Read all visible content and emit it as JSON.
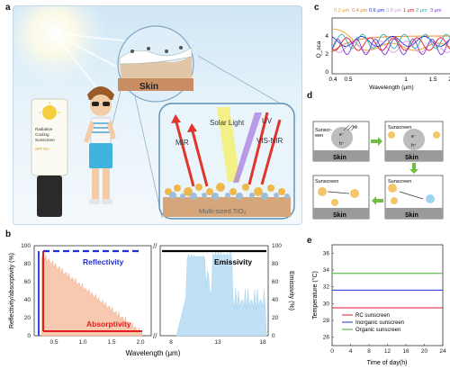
{
  "panels": {
    "a": {
      "label": "a",
      "skin_bubble_label": "Skin",
      "tube_lines": [
        "Radiative",
        "Cooling",
        "Sunscreen"
      ],
      "tube_spf": "SPF 50+",
      "solar_light_label": "Solar Light",
      "uv_label": "UV",
      "mir_label": "MIR",
      "visnir_label": "VIS-NIR",
      "tio2_label": "Multi-sized TiO₂"
    },
    "b": {
      "label": "b",
      "ylabel_left": "Reflectivity/absorptivity (%)",
      "ylabel_right": "Emissivity (%)",
      "xlabel": "Wavelength (μm)",
      "left_yticks": [
        "0",
        "20",
        "40",
        "60",
        "80",
        "100"
      ],
      "right_yticks": [
        "0",
        "20",
        "40",
        "60",
        "80",
        "100"
      ],
      "left_xticks": [
        "0.5",
        "1.0",
        "1.5",
        "2.0"
      ],
      "right_xticks": [
        "8",
        "13",
        "18"
      ],
      "reflectivity_label": "Reflectivity",
      "absorptivity_label": "Absorptivity",
      "emissivity_label": "Emissivity",
      "colors": {
        "reflectivity": "#1f2fd6",
        "absorptivity": "#e51c1c",
        "fill_orange": "#f6c9b0",
        "fill_blue": "#bfe0f5",
        "emissivity": "#000000"
      }
    },
    "c": {
      "label": "c",
      "ylabel": "Q_sca",
      "xlabel": "Wavelength (μm)",
      "yticks": [
        "0",
        "2",
        "4"
      ],
      "xticks": [
        "0.4",
        "0.5",
        "1",
        "1.5",
        "2"
      ],
      "legend": [
        {
          "text": "0.2 μm",
          "color": "#e9a21a"
        },
        {
          "text": "0.4 μm",
          "color": "#f07f1c"
        },
        {
          "text": "0.6 μm",
          "color": "#1b2fd0"
        },
        {
          "text": "0.8 μm",
          "color": "#d69ae0"
        },
        {
          "text": "1 μm",
          "color": "#e0152a"
        },
        {
          "text": "2 μm",
          "color": "#2fb3ad"
        },
        {
          "text": "3 μm",
          "color": "#7b3fd0"
        }
      ]
    },
    "d": {
      "label": "d",
      "skin_labels": [
        "Skin",
        "Skin",
        "Skin",
        "Skin"
      ],
      "sunscreen_label": "Sunscreen",
      "sunscreen_split": "Sunscr-\neen",
      "hv_label": "hv",
      "electron": "e⁻",
      "hole": "h⁺",
      "h2o": "H₂O",
      "h2o2": "H₂O₂",
      "oh": "OH",
      "o2": "O₂",
      "sup_minus": "•⁻"
    },
    "e": {
      "label": "e",
      "ylabel": "Temperature (°C)",
      "xlabel": "Time of day(h)",
      "yticks": [
        "26",
        "28",
        "30",
        "32",
        "34",
        "36"
      ],
      "xticks": [
        "0",
        "4",
        "8",
        "12",
        "16",
        "20",
        "24"
      ],
      "legend": [
        {
          "text": "RC sunscreen",
          "color": "#e0152a"
        },
        {
          "text": "Inorganic sunscreen",
          "color": "#1b2fd0"
        },
        {
          "text": "Organic sunscreen",
          "color": "#3fae2a"
        }
      ]
    }
  },
  "chart_data": [
    {
      "type": "line",
      "panel": "e",
      "xlabel": "Time of day(h)",
      "ylabel": "Temperature (°C)",
      "xlim": [
        0,
        24
      ],
      "ylim": [
        25,
        37
      ],
      "series": [
        {
          "name": "RC sunscreen",
          "x": [
            0,
            24
          ],
          "values": [
            29.5,
            29.5
          ]
        },
        {
          "name": "Inorganic sunscreen",
          "x": [
            0,
            24
          ],
          "values": [
            31.6,
            31.6
          ]
        },
        {
          "name": "Organic sunscreen",
          "x": [
            0,
            24
          ],
          "values": [
            33.6,
            33.6
          ]
        }
      ]
    },
    {
      "type": "line",
      "panel": "b",
      "xlabel": "Wavelength (μm)",
      "ylabel": "Reflectivity/absorptivity (%)",
      "ylim": [
        0,
        100
      ],
      "series": [
        {
          "name": "Reflectivity",
          "x": [
            0.28,
            0.38,
            2.0
          ],
          "values": [
            100,
            100,
            100
          ]
        },
        {
          "name": "Absorptivity",
          "x": [
            0.35,
            0.38,
            2.0
          ],
          "values": [
            100,
            5,
            5
          ]
        },
        {
          "name": "Emissivity",
          "x": [
            8,
            18
          ],
          "values": [
            100,
            100
          ]
        }
      ]
    }
  ]
}
